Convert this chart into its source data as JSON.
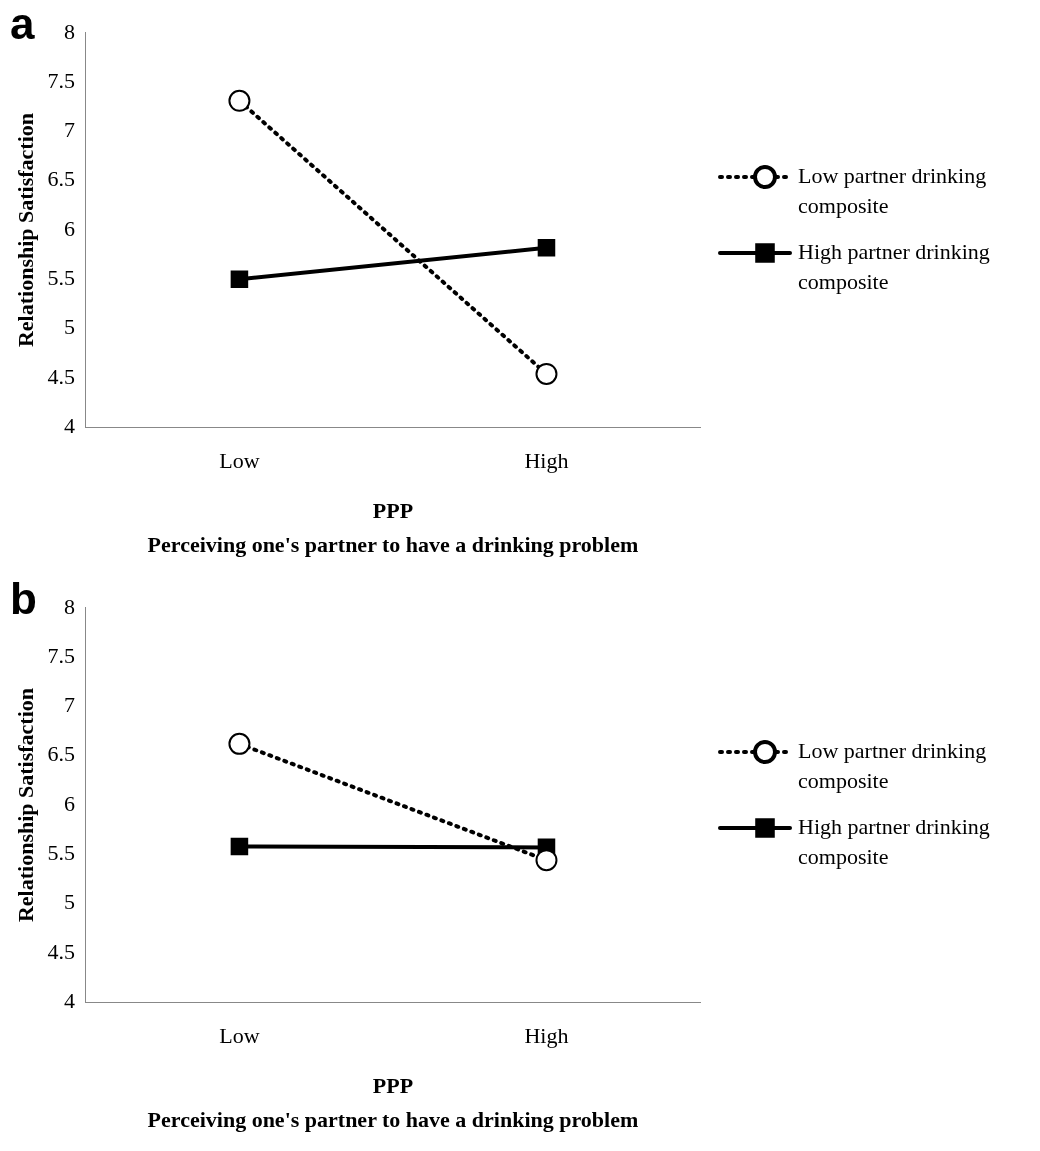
{
  "chart_data": [
    {
      "type": "line",
      "title": "a",
      "xlabel": "PPP",
      "ylabel": "Relationship Satisfaction",
      "annotations": [
        "Perceiving one's partner to have a drinking problem"
      ],
      "categories": [
        "Low",
        "High"
      ],
      "series": [
        {
          "name": "Low partner drinking composite",
          "color": "#000000",
          "values": [
            7.31,
            4.54
          ],
          "marker": "circle",
          "line_style": "dotted"
        },
        {
          "name": "High partner drinking composite",
          "color": "#000000",
          "values": [
            5.5,
            5.82
          ],
          "marker": "square",
          "line_style": "solid"
        }
      ],
      "ylim": [
        4,
        8
      ],
      "yticks": [
        4,
        4.5,
        5,
        5.5,
        6,
        6.5,
        7,
        7.5,
        8
      ],
      "grid": false,
      "legend": "right"
    },
    {
      "type": "line",
      "title": "b",
      "xlabel": "PPP",
      "ylabel": "Relationship Satisfaction",
      "annotations": [
        "Perceiving one's partner to have a drinking problem"
      ],
      "categories": [
        "Low",
        "High"
      ],
      "series": [
        {
          "name": "Low partner drinking composite",
          "color": "#000000",
          "values": [
            6.62,
            5.44
          ],
          "marker": "circle",
          "line_style": "dotted"
        },
        {
          "name": "High partner drinking composite",
          "color": "#000000",
          "values": [
            5.58,
            5.57
          ],
          "marker": "square",
          "line_style": "solid"
        }
      ],
      "ylim": [
        4,
        8
      ],
      "yticks": [
        4,
        4.5,
        5,
        5.5,
        6,
        6.5,
        7,
        7.5,
        8
      ],
      "grid": false,
      "legend": "right"
    }
  ]
}
